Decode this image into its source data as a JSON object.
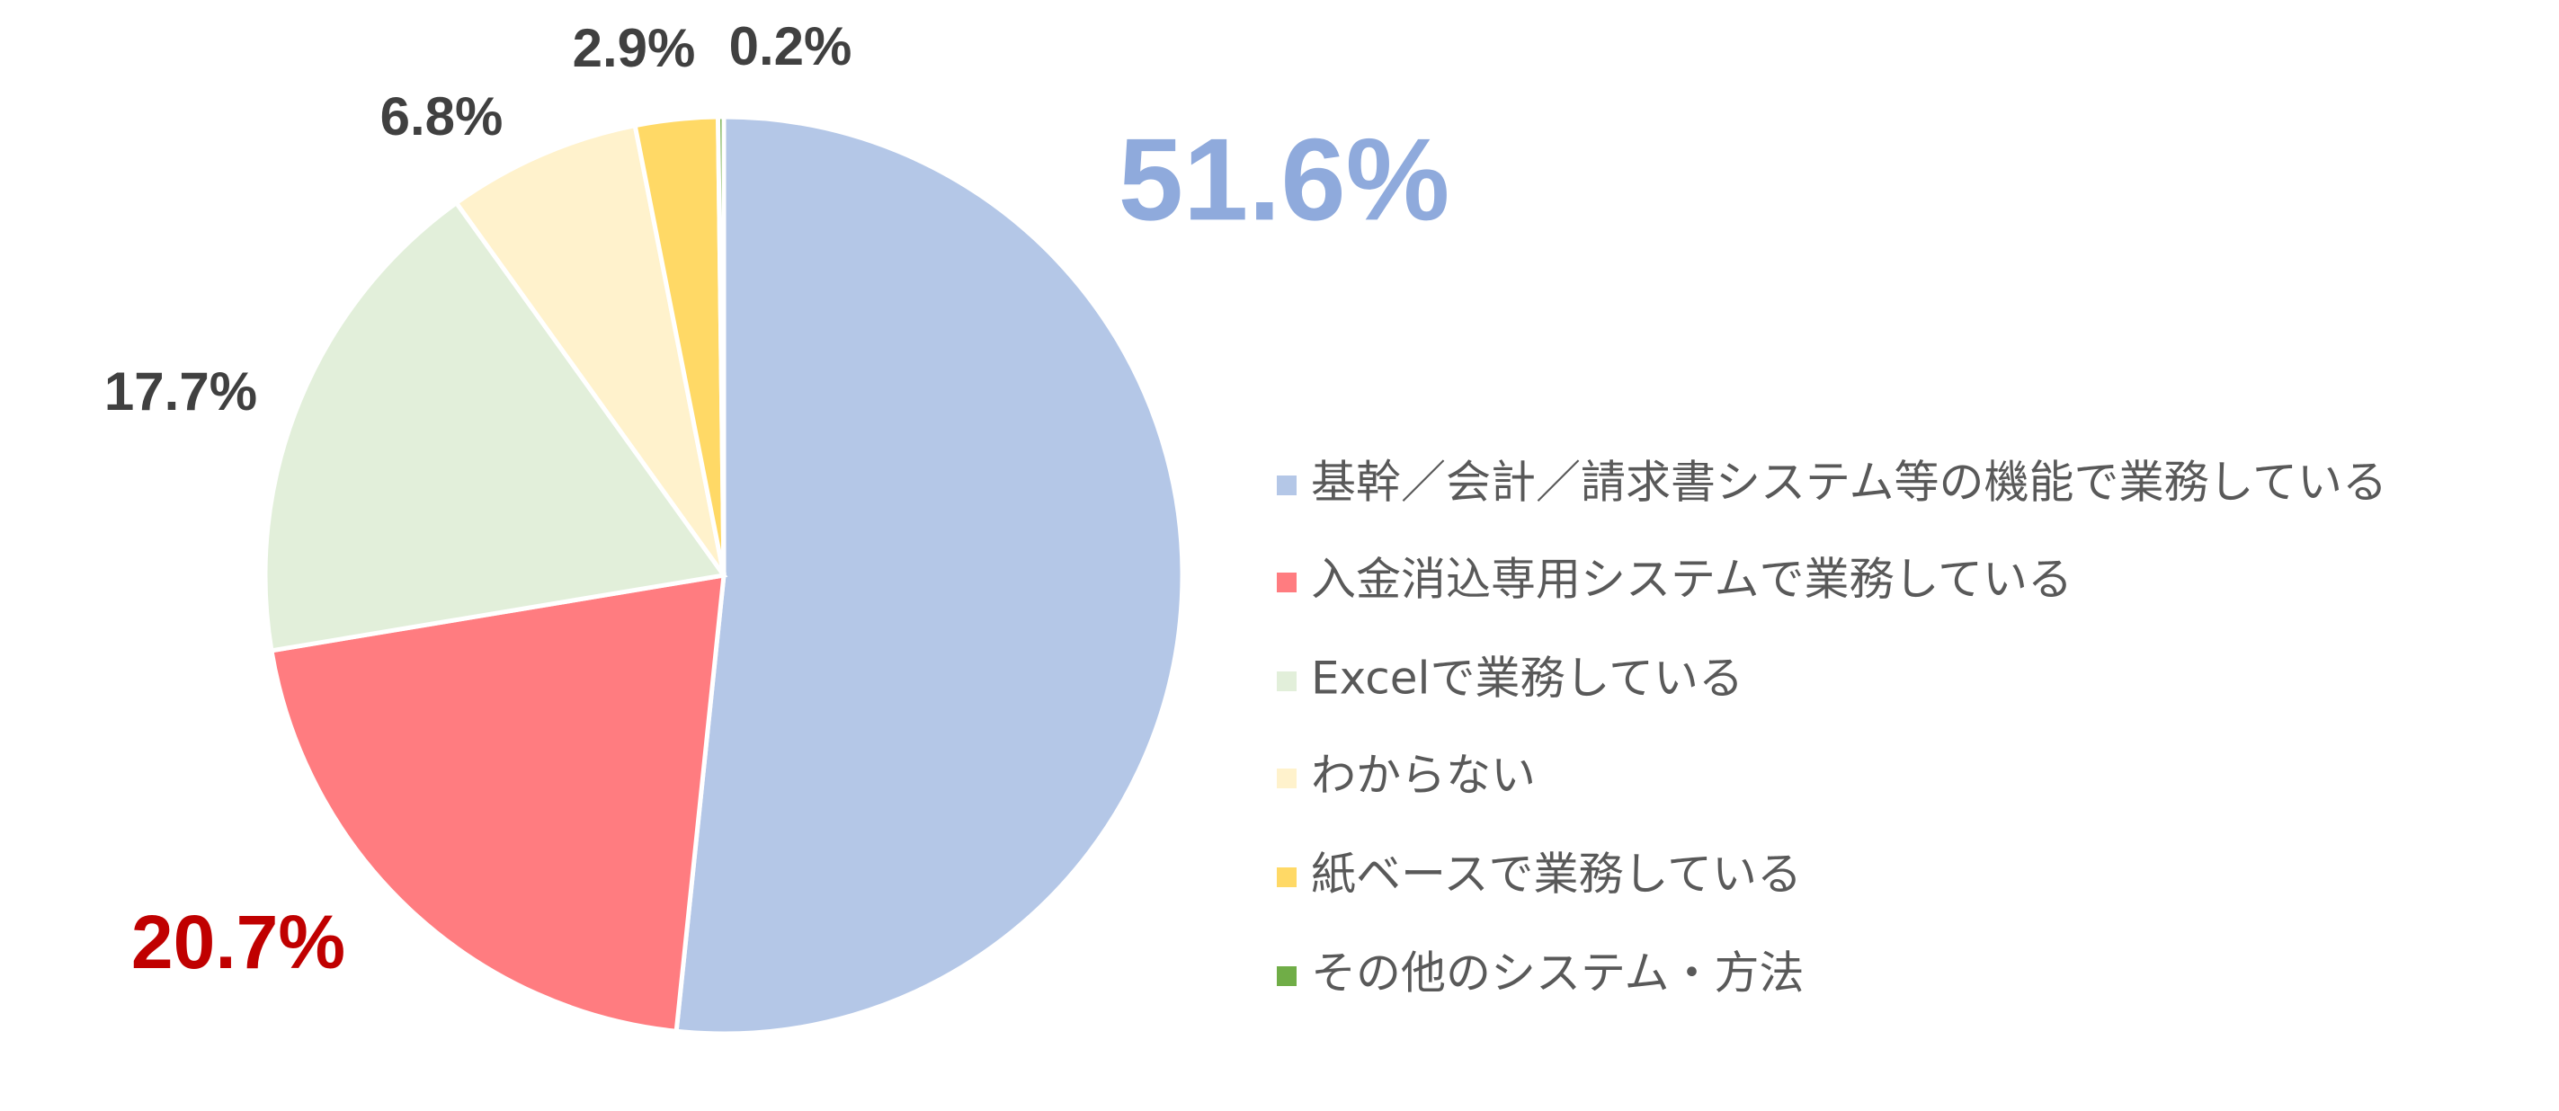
{
  "chart_data": {
    "type": "pie",
    "categories": [
      "基幹／会計／請求書システム等の機能で業務している",
      "入金消込専用システムで業務している",
      "Excelで業務している",
      "わからない",
      "紙ベースで業務している",
      "その他のシステム・方法"
    ],
    "values": [
      51.6,
      20.7,
      17.7,
      6.8,
      2.9,
      0.2
    ],
    "value_labels": [
      "51.6%",
      "20.7%",
      "17.7%",
      "6.8%",
      "2.9%",
      "0.2%"
    ],
    "colors": [
      "#b4c7e7",
      "#ff7c80",
      "#e2efda",
      "#fff2cc",
      "#ffd966",
      "#70ad47"
    ],
    "label_colors": [
      "#8faadc",
      "#c00000",
      "#404040",
      "#404040",
      "#404040",
      "#404040"
    ],
    "legend": "right"
  }
}
